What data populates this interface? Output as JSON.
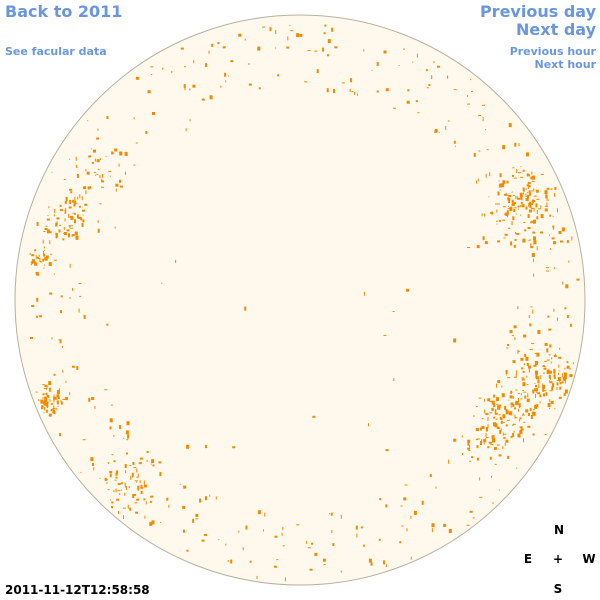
{
  "links": {
    "back": "Back to 2011",
    "facular": "See facular data",
    "previous_day": "Previous day",
    "next_day": "Next day",
    "previous_hour": "Previous hour",
    "next_hour": "Next hour"
  },
  "compass": {
    "n": "N",
    "e": "E",
    "center": "+",
    "w": "W",
    "s": "S"
  },
  "timestamp": "2011-11-12T12:58:58"
}
